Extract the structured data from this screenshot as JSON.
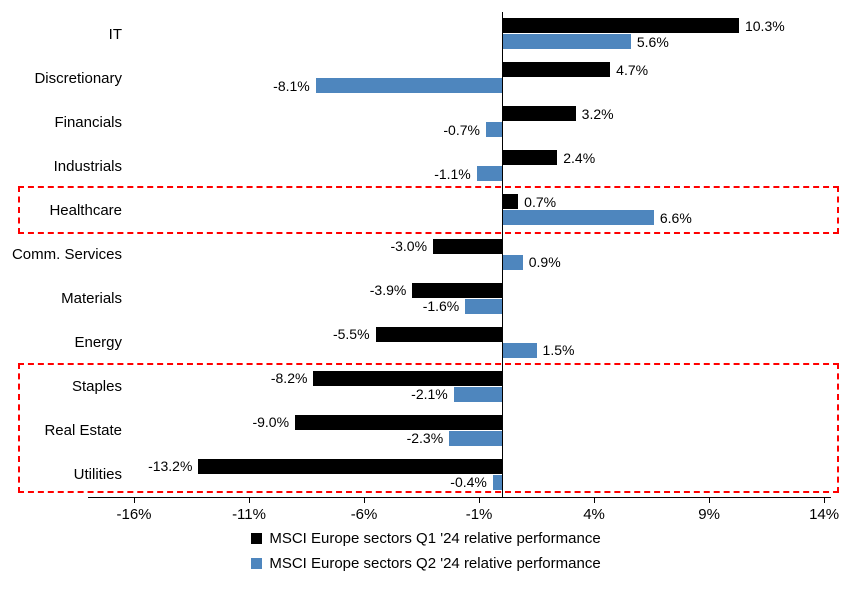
{
  "chart_data": {
    "type": "bar",
    "orientation": "horizontal",
    "title": "",
    "categories": [
      "IT",
      "Discretionary",
      "Financials",
      "Industrials",
      "Healthcare",
      "Comm. Services",
      "Materials",
      "Energy",
      "Staples",
      "Real Estate",
      "Utilities"
    ],
    "series": [
      {
        "name": "MSCI Europe sectors Q1 '24 relative performance",
        "color": "#000000",
        "values": [
          10.3,
          4.7,
          3.2,
          2.4,
          0.7,
          -3.0,
          -3.9,
          -5.5,
          -8.2,
          -9.0,
          -13.2
        ],
        "labels": [
          "10.3%",
          "4.7%",
          "3.2%",
          "2.4%",
          "0.7%",
          "-3.0%",
          "-3.9%",
          "-5.5%",
          "-8.2%",
          "-9.0%",
          "-13.2%"
        ]
      },
      {
        "name": "MSCI Europe sectors Q2 '24 relative performance",
        "color": "#4E86BE",
        "values": [
          5.6,
          -8.1,
          -0.7,
          -1.1,
          6.6,
          0.9,
          -1.6,
          1.5,
          -2.1,
          -2.3,
          -0.4
        ],
        "labels": [
          "5.6%",
          "-8.1%",
          "-0.7%",
          "-1.1%",
          "6.6%",
          "0.9%",
          "-1.6%",
          "1.5%",
          "-2.1%",
          "-2.3%",
          "-0.4%"
        ]
      }
    ],
    "x_axis": {
      "tick_labels": [
        "-16%",
        "-11%",
        "-6%",
        "-1%",
        "4%",
        "9%",
        "14%"
      ],
      "tick_values": [
        -16,
        -11,
        -6,
        -1,
        4,
        9,
        14
      ],
      "min": -18.0,
      "max": 14.3
    },
    "grid": false,
    "legend_position": "bottom",
    "highlight_boxes": [
      {
        "from": "Healthcare",
        "to": "Healthcare",
        "color": "#FF0000",
        "style": "dashed"
      },
      {
        "from": "Staples",
        "to": "Utilities",
        "color": "#FF0000",
        "style": "dashed"
      }
    ]
  }
}
